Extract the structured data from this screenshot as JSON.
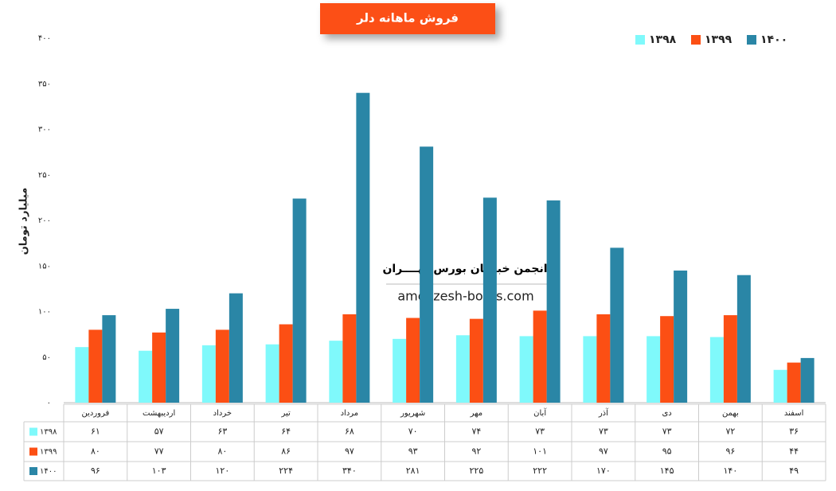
{
  "chart_data": {
    "type": "bar",
    "title": "فروش ماهانه دلر",
    "y_label": "میلیارد تومان",
    "annotations": [
      "انجمن خبرگان بورس تهــــران",
      "amoozesh-boors.com"
    ],
    "categories": [
      "فروردین",
      "اردیبهشت",
      "خرداد",
      "تیر",
      "مرداد",
      "شهریور",
      "مهر",
      "آبان",
      "آذر",
      "دی",
      "بهمن",
      "اسفند"
    ],
    "series": [
      {
        "name": "۱۳۹۸",
        "color": "#7ff9fb",
        "values": [
          61,
          57,
          63,
          64,
          68,
          70,
          74,
          73,
          73,
          73,
          72,
          36
        ],
        "value_labels": [
          "۶۱",
          "۵۷",
          "۶۳",
          "۶۴",
          "۶۸",
          "۷۰",
          "۷۴",
          "۷۳",
          "۷۳",
          "۷۳",
          "۷۲",
          "۳۶"
        ]
      },
      {
        "name": "۱۳۹۹",
        "color": "#fc4f14",
        "values": [
          80,
          77,
          80,
          86,
          97,
          93,
          92,
          101,
          97,
          95,
          96,
          44
        ],
        "value_labels": [
          "۸۰",
          "۷۷",
          "۸۰",
          "۸۶",
          "۹۷",
          "۹۳",
          "۹۲",
          "۱۰۱",
          "۹۷",
          "۹۵",
          "۹۶",
          "۴۴"
        ]
      },
      {
        "name": "۱۴۰۰",
        "color": "#2a86a6",
        "values": [
          96,
          103,
          120,
          224,
          340,
          281,
          225,
          222,
          170,
          145,
          140,
          49
        ],
        "value_labels": [
          "۹۶",
          "۱۰۳",
          "۱۲۰",
          "۲۲۴",
          "۳۴۰",
          "۲۸۱",
          "۲۲۵",
          "۲۲۲",
          "۱۷۰",
          "۱۴۵",
          "۱۴۰",
          "۴۹"
        ]
      }
    ],
    "ylim": [
      0,
      400
    ],
    "yticks": [
      {
        "value": 0,
        "label": "۰"
      },
      {
        "value": 50,
        "label": "۵۰"
      },
      {
        "value": 100,
        "label": "۱۰۰"
      },
      {
        "value": 150,
        "label": "۱۵۰"
      },
      {
        "value": 200,
        "label": "۲۰۰"
      },
      {
        "value": 250,
        "label": "۲۵۰"
      },
      {
        "value": 300,
        "label": "۳۰۰"
      },
      {
        "value": 350,
        "label": "۳۵۰"
      },
      {
        "value": 400,
        "label": "۴۰۰"
      }
    ],
    "grid": false,
    "legend": "top-right"
  }
}
